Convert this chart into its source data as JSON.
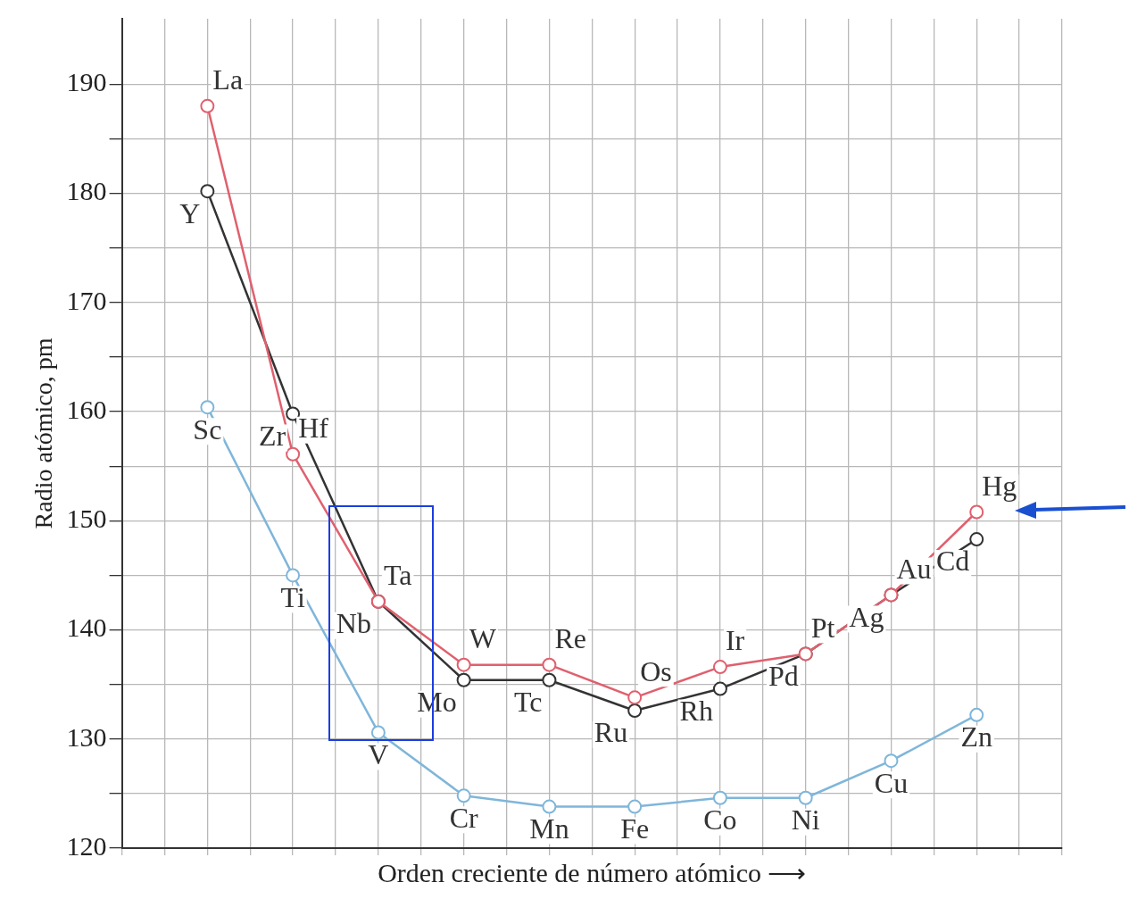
{
  "chart_data": {
    "type": "line",
    "xlabel": "Orden creciente de número atómico ⟶",
    "ylabel": "Radio atómico, pm",
    "categories": [
      null,
      null,
      null,
      null,
      null,
      null,
      null,
      null,
      null,
      null
    ],
    "ylim": [
      120,
      196
    ],
    "yticks": [
      120,
      {
        "value": 125,
        "label": null
      },
      130,
      {
        "value": 135,
        "label": null
      },
      140,
      {
        "value": 145,
        "label": null
      },
      150,
      {
        "value": 155,
        "label": null
      },
      160,
      {
        "value": 165,
        "label": null
      },
      170,
      {
        "value": 175,
        "label": null
      },
      180,
      {
        "value": 185,
        "label": null
      },
      190
    ],
    "grid": true,
    "legend": false,
    "marker": "circle",
    "line_style": "solid",
    "tick_labels": "y",
    "series": [
      {
        "color": "#e0606e",
        "values": [
          188,
          156.1,
          142.6,
          136.8,
          136.8,
          133.8,
          136.6,
          137.8,
          143.2,
          150.8
        ],
        "value_labels": [
          "La",
          "Hf",
          "Ta",
          "W",
          "Re",
          "Os",
          "Ir",
          "Pt",
          "Au",
          "Hg"
        ]
      },
      {
        "color": "#333333",
        "values": [
          180.2,
          159.8,
          142.6,
          135.4,
          135.4,
          132.6,
          134.6,
          137.8,
          143.2,
          148.3
        ],
        "value_labels": [
          "Y",
          "Zr",
          "Nb",
          "Mo",
          "Tc",
          "Ru",
          "Rh",
          "Pd",
          "Ag",
          "Cd"
        ]
      },
      {
        "color": "#7fb6da",
        "values": [
          160.4,
          145,
          130.6,
          124.8,
          123.8,
          123.8,
          124.6,
          124.6,
          128,
          132.2
        ],
        "value_labels": [
          "Sc",
          "Ti",
          "V",
          "Cr",
          "Mn",
          "Fe",
          "Co",
          "Ni",
          "Cu",
          "Zn"
        ]
      }
    ]
  }
}
